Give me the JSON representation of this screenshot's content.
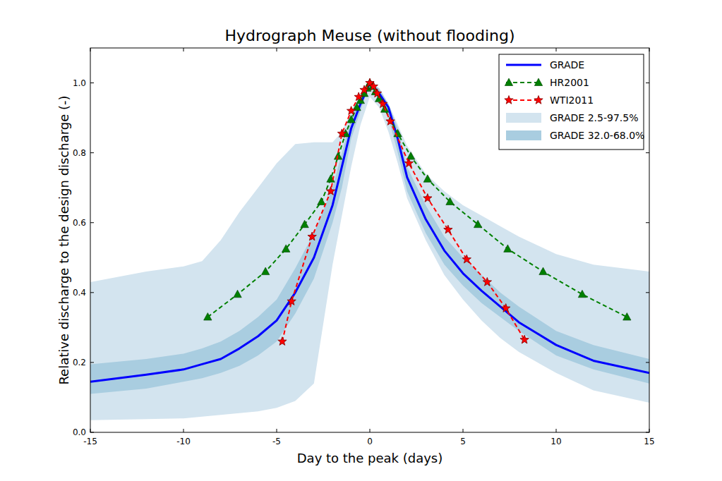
{
  "chart_data": {
    "type": "line",
    "title": "Hydrograph Meuse (without flooding)",
    "x_label": "Day to the peak (days)",
    "y_label": "Relative discharge to the design discharge (-)",
    "xlim": [
      -15,
      15
    ],
    "ylim": [
      0,
      1.1
    ],
    "xticks": [
      -15,
      -10,
      -5,
      0,
      5,
      10,
      15
    ],
    "yticks": [
      {
        "value": 0,
        "label": "0.0"
      },
      {
        "value": 0.2,
        "label": "0.2"
      },
      {
        "value": 0.4,
        "label": "0.4"
      },
      {
        "value": 0.6,
        "label": "0.6"
      },
      {
        "value": 0.8,
        "label": "0.8"
      },
      {
        "value": 1.0,
        "label": "1.0"
      }
    ],
    "legend": "upper right",
    "grid": false,
    "series": [
      {
        "name": "GRADE",
        "type": "line",
        "color": "#0000ff",
        "line_style": "solid",
        "x": [
          -15,
          -12,
          -10,
          -9,
          -8,
          -7,
          -6,
          -5,
          -4,
          -3,
          -2,
          -1.5,
          -1,
          -0.5,
          0,
          0.5,
          1,
          1.5,
          2,
          3,
          4,
          5,
          6,
          7,
          8,
          10,
          12,
          15
        ],
        "values": [
          0.145,
          0.165,
          0.18,
          0.195,
          0.21,
          0.24,
          0.275,
          0.32,
          0.4,
          0.5,
          0.65,
          0.76,
          0.87,
          0.94,
          1.0,
          0.97,
          0.93,
          0.84,
          0.73,
          0.61,
          0.52,
          0.455,
          0.405,
          0.36,
          0.315,
          0.25,
          0.205,
          0.17
        ]
      },
      {
        "name": "HR2001",
        "type": "line",
        "color": "#008000",
        "line_style": "dashed",
        "marker": "triangle",
        "x": [
          -8.7,
          -7.1,
          -5.6,
          -4.5,
          -3.5,
          -2.6,
          -2.1,
          -1.7,
          -1.3,
          -1.0,
          -0.7,
          -0.5,
          -0.3,
          -0.15,
          0,
          0.15,
          0.3,
          0.5,
          0.8,
          1.5,
          2.2,
          3.1,
          4.3,
          5.8,
          7.4,
          9.3,
          11.4,
          13.8
        ],
        "values": [
          0.33,
          0.395,
          0.46,
          0.525,
          0.595,
          0.66,
          0.725,
          0.79,
          0.855,
          0.895,
          0.93,
          0.95,
          0.97,
          0.985,
          1.0,
          0.99,
          0.975,
          0.955,
          0.925,
          0.855,
          0.79,
          0.725,
          0.66,
          0.595,
          0.525,
          0.46,
          0.395,
          0.33
        ]
      },
      {
        "name": "WTI2011",
        "type": "line",
        "color": "#ff0000",
        "line_style": "dashed",
        "marker": "star",
        "x": [
          -4.7,
          -4.2,
          -3.1,
          -2.1,
          -1.5,
          -1.0,
          -0.6,
          -0.3,
          0,
          0.2,
          0.4,
          0.7,
          1.1,
          2.1,
          3.1,
          4.2,
          5.2,
          6.3,
          7.3,
          8.3
        ],
        "values": [
          0.26,
          0.375,
          0.56,
          0.69,
          0.855,
          0.92,
          0.96,
          0.98,
          1.0,
          0.99,
          0.97,
          0.94,
          0.89,
          0.77,
          0.67,
          0.58,
          0.495,
          0.43,
          0.355,
          0.265
        ]
      },
      {
        "name": "GRADE 2.5-97.5%",
        "type": "band",
        "color": "#d3e4ef",
        "x": [
          -15,
          -12,
          -10,
          -9,
          -8,
          -7,
          -6,
          -5,
          -4,
          -3,
          -2,
          -1.5,
          -1,
          -0.5,
          0,
          0.5,
          1,
          1.5,
          2,
          3,
          4,
          5,
          6,
          7,
          8,
          10,
          12,
          15
        ],
        "lower": [
          0.035,
          0.038,
          0.04,
          0.045,
          0.05,
          0.055,
          0.06,
          0.07,
          0.09,
          0.14,
          0.48,
          0.62,
          0.76,
          0.88,
          0.96,
          0.93,
          0.86,
          0.77,
          0.67,
          0.55,
          0.45,
          0.38,
          0.32,
          0.27,
          0.23,
          0.17,
          0.12,
          0.085
        ],
        "upper": [
          0.43,
          0.46,
          0.475,
          0.49,
          0.55,
          0.63,
          0.7,
          0.77,
          0.825,
          0.83,
          0.83,
          0.86,
          0.92,
          0.97,
          1.0,
          0.98,
          0.94,
          0.88,
          0.82,
          0.74,
          0.69,
          0.65,
          0.62,
          0.59,
          0.56,
          0.51,
          0.48,
          0.46
        ]
      },
      {
        "name": "GRADE 32.0-68.0%",
        "type": "band",
        "color": "#a9cde0",
        "x": [
          -15,
          -12,
          -10,
          -9,
          -8,
          -7,
          -6,
          -5,
          -4,
          -3,
          -2,
          -1.5,
          -1,
          -0.5,
          0,
          0.5,
          1,
          1.5,
          2,
          3,
          4,
          5,
          6,
          7,
          8,
          10,
          12,
          15
        ],
        "lower": [
          0.11,
          0.125,
          0.145,
          0.155,
          0.17,
          0.19,
          0.22,
          0.26,
          0.34,
          0.44,
          0.6,
          0.7,
          0.84,
          0.92,
          1.0,
          0.95,
          0.9,
          0.8,
          0.69,
          0.57,
          0.48,
          0.42,
          0.37,
          0.33,
          0.29,
          0.22,
          0.18,
          0.14
        ],
        "upper": [
          0.195,
          0.21,
          0.225,
          0.24,
          0.26,
          0.29,
          0.33,
          0.38,
          0.47,
          0.57,
          0.7,
          0.8,
          0.9,
          0.96,
          1.0,
          0.985,
          0.94,
          0.87,
          0.76,
          0.65,
          0.56,
          0.5,
          0.45,
          0.4,
          0.36,
          0.29,
          0.25,
          0.21
        ]
      }
    ]
  }
}
